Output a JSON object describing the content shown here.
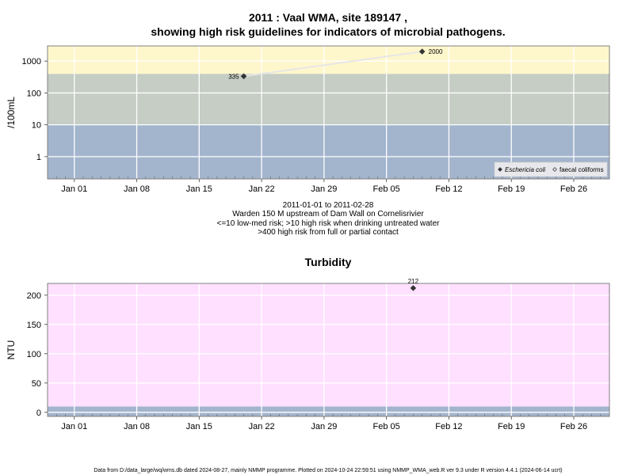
{
  "chart_data": [
    {
      "type": "scatter",
      "title": "2011 : Vaal WMA, site 189147 ,",
      "subtitle": "showing high risk guidelines for indicators of microbial pathogens.",
      "ylabel": "/100mL",
      "y_scale": "log",
      "ylim": [
        0.2,
        3000
      ],
      "xlim": [
        "2010-12-29",
        "2011-03-02"
      ],
      "y_ticks": [
        1,
        10,
        100,
        1000
      ],
      "y_tick_labels": [
        "1",
        "10",
        "100",
        "1000"
      ],
      "x_ticks": [
        "2011-01-01",
        "2011-01-08",
        "2011-01-15",
        "2011-01-22",
        "2011-01-29",
        "2011-02-05",
        "2011-02-12",
        "2011-02-19",
        "2011-02-26"
      ],
      "x_tick_labels": [
        "Jan 01",
        "Jan 08",
        "Jan 15",
        "Jan 22",
        "Jan 29",
        "Feb 05",
        "Feb 12",
        "Feb 19",
        "Feb 26"
      ],
      "grid": true,
      "bands": [
        {
          "from": 0.2,
          "to": 10,
          "color": "#a3b4cd"
        },
        {
          "from": 10,
          "to": 400,
          "color": "#c5cdc4"
        },
        {
          "from": 400,
          "to": 3000,
          "color": "#fff7cc"
        }
      ],
      "series": [
        {
          "name": "Eschericia coli",
          "marker": "filled-diamond",
          "color": "#333333",
          "x": [
            "2011-01-20",
            "2011-02-09"
          ],
          "y": [
            335,
            2000
          ],
          "labels": [
            "335",
            "2000"
          ]
        },
        {
          "name": "faecal coliforms",
          "marker": "open-diamond",
          "color": "#333333",
          "x": [],
          "y": [],
          "labels": []
        }
      ],
      "legend": {
        "position": "bottom-right",
        "entries": [
          "Eschericia coli",
          "faecal coliforms"
        ]
      },
      "caption": [
        "2011-01-01 to 2011-02-28",
        "Warden 150 M upstream of Dam Wall on Cornelisrivier",
        "<=10 low-med risk; >10 high risk when drinking untreated water",
        ">400 high risk from full or partial contact"
      ]
    },
    {
      "type": "scatter",
      "title": "Turbidity",
      "ylabel": "NTU",
      "ylim": [
        -7,
        220
      ],
      "xlim": [
        "2010-12-29",
        "2011-03-02"
      ],
      "y_ticks": [
        0,
        50,
        100,
        150,
        200
      ],
      "y_tick_labels": [
        "0",
        "50",
        "100",
        "150",
        "200"
      ],
      "x_ticks": [
        "2011-01-01",
        "2011-01-08",
        "2011-01-15",
        "2011-01-22",
        "2011-01-29",
        "2011-02-05",
        "2011-02-12",
        "2011-02-19",
        "2011-02-26"
      ],
      "x_tick_labels": [
        "Jan 01",
        "Jan 08",
        "Jan 15",
        "Jan 22",
        "Jan 29",
        "Feb 05",
        "Feb 12",
        "Feb 19",
        "Feb 26"
      ],
      "grid": true,
      "bands": [
        {
          "from": -7,
          "to": 10,
          "color": "#a3b4cd"
        },
        {
          "from": 10,
          "to": 220,
          "color": "#ffe0ff"
        }
      ],
      "series": [
        {
          "name": "",
          "marker": "filled-diamond",
          "color": "#333333",
          "x": [
            "2011-02-08"
          ],
          "y": [
            212
          ],
          "labels": [
            "212"
          ]
        }
      ]
    }
  ],
  "footer": "Data from D:/data_large/wq/wms.db dated 2024-08-27, mainly NMMP programme. Plotted on 2024-10-24 22:59:51 using NMMP_WMA_web.R ver 9.3 under R version 4.4.1 (2024-06-14 ucrt)",
  "colors": {
    "axis": "#808080",
    "grid": "#ffffff",
    "point": "#333333",
    "connector": "#e6e6e6"
  }
}
